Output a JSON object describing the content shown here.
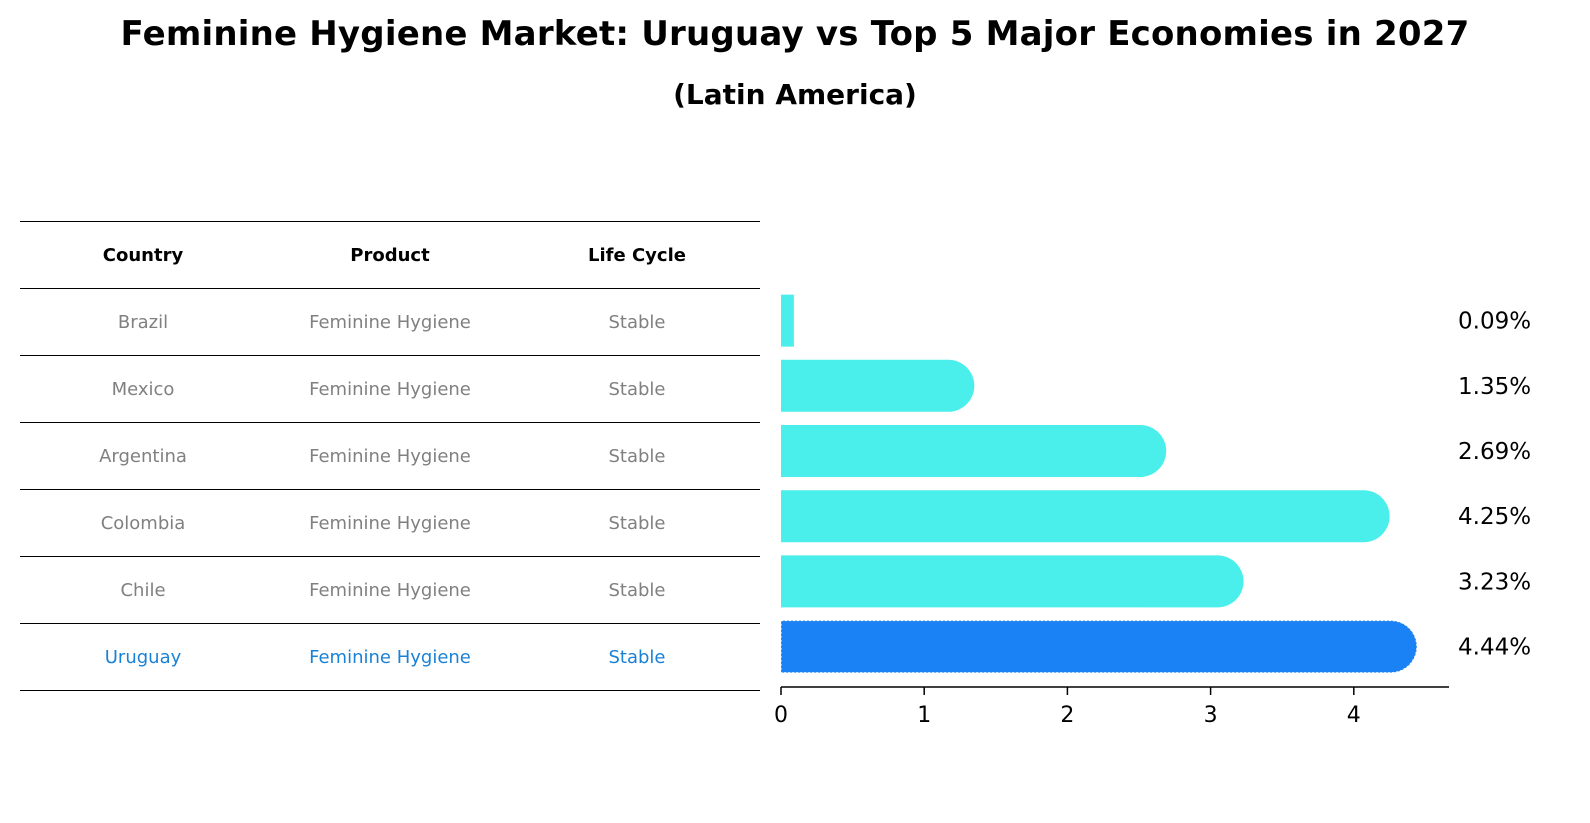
{
  "title": "Feminine Hygiene Market: Uruguay vs Top 5 Major Economies in 2027",
  "subtitle": "(Latin America)",
  "table": {
    "headers": [
      "Country",
      "Product",
      "Life Cycle"
    ],
    "rows": [
      {
        "country": "Brazil",
        "product": "Feminine Hygiene",
        "life_cycle": "Stable"
      },
      {
        "country": "Mexico",
        "product": "Feminine Hygiene",
        "life_cycle": "Stable"
      },
      {
        "country": "Argentina",
        "product": "Feminine Hygiene",
        "life_cycle": "Stable"
      },
      {
        "country": "Colombia",
        "product": "Feminine Hygiene",
        "life_cycle": "Stable"
      },
      {
        "country": "Chile",
        "product": "Feminine Hygiene",
        "life_cycle": "Stable"
      },
      {
        "country": "Uruguay",
        "product": "Feminine Hygiene",
        "life_cycle": "Stable"
      }
    ]
  },
  "chart_data": {
    "type": "bar",
    "orientation": "horizontal",
    "categories": [
      "Brazil",
      "Mexico",
      "Argentina",
      "Colombia",
      "Chile",
      "Uruguay"
    ],
    "values": [
      0.09,
      1.35,
      2.69,
      4.25,
      3.23,
      4.44
    ],
    "value_labels": [
      "0.09%",
      "1.35%",
      "2.69%",
      "4.25%",
      "3.23%",
      "4.44%"
    ],
    "highlight": "Uruguay",
    "colors": {
      "default": "#4aeeea",
      "highlight": "#1a82f5",
      "highlight_text": "#1a82d6"
    },
    "xticks": [
      "0",
      "1",
      "2",
      "3",
      "4"
    ],
    "xlim": [
      0,
      4.66
    ],
    "grid": false
  }
}
